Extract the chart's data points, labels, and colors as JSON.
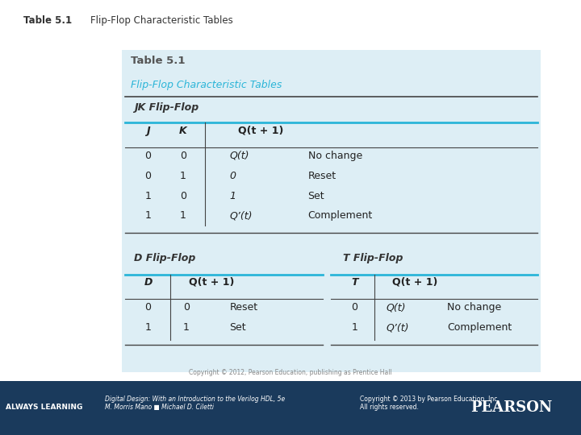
{
  "bg_color": "#ffffff",
  "slide_bg": "#e8f4f8",
  "footer_left": "ALWAYS LEARNING",
  "footer_book": "Digital Design: With an Introduction to the Verilog HDL, 5e\nM. Morris Mano ■ Michael D. Ciletti",
  "footer_copy": "Copyright © 2013 by Pearson Education, Inc.\nAll rights reserved.",
  "footer_pearson": "PEARSON",
  "teal_color": "#2bb5d8",
  "dark_line_color": "#444444",
  "copyright_text": "Copyright © 2012, Pearson Education, publishing as Prentice Hall",
  "jk_title": "JK Flip-Flop",
  "jk_rows": [
    [
      "0",
      "0",
      "Q(t)",
      "No change"
    ],
    [
      "0",
      "1",
      "0",
      "Reset"
    ],
    [
      "1",
      "0",
      "1",
      "Set"
    ],
    [
      "1",
      "1",
      "Q’(t)",
      "Complement"
    ]
  ],
  "d_title": "D Flip-Flop",
  "d_rows": [
    [
      "0",
      "0",
      "Reset"
    ],
    [
      "1",
      "1",
      "Set"
    ]
  ],
  "t_title": "T Flip-Flop",
  "t_rows": [
    [
      "0",
      "Q(t)",
      "No change"
    ],
    [
      "1",
      "Q’(t)",
      "Complement"
    ]
  ]
}
